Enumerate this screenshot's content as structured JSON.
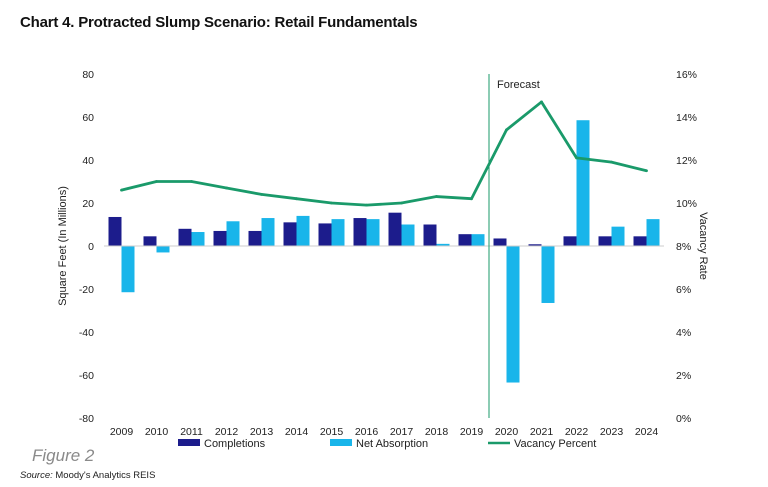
{
  "title": "Chart 4. Protracted Slump Scenario: Retail Fundamentals",
  "figure_label": "Figure 2",
  "source": {
    "label": "Source:",
    "text": " Moody's Analytics REIS"
  },
  "chart_data": {
    "type": "bar",
    "categories": [
      "2009",
      "2010",
      "2011",
      "2012",
      "2013",
      "2014",
      "2015",
      "2016",
      "2017",
      "2018",
      "2019",
      "2020",
      "2021",
      "2022",
      "2023",
      "2024"
    ],
    "series": [
      {
        "name": "Completions",
        "type": "bar",
        "axis": "left",
        "color": "#1c1c8c",
        "values": [
          13.5,
          4.5,
          8,
          7,
          7,
          11,
          10.5,
          13,
          15.5,
          10,
          5.5,
          3.5,
          0.8,
          4.5,
          4.5,
          4.5
        ]
      },
      {
        "name": "Net Absorption",
        "type": "bar",
        "axis": "left",
        "color": "#19b5ea",
        "values": [
          -21.5,
          -3,
          6.5,
          11.5,
          13,
          14,
          12.5,
          12.5,
          10,
          1,
          5.5,
          -63.5,
          -26.5,
          58.5,
          9,
          12.5
        ]
      },
      {
        "name": "Vacancy Percent",
        "type": "line",
        "axis": "right",
        "color": "#1a9a6a",
        "values": [
          10.6,
          11.0,
          11.0,
          10.7,
          10.4,
          10.2,
          10.0,
          9.9,
          10.0,
          10.3,
          10.2,
          13.4,
          14.7,
          12.1,
          11.9,
          11.5
        ]
      }
    ],
    "ylabel": "Square Feet (In Millions)",
    "ylim": [
      -80,
      80
    ],
    "yticks": [
      80,
      60,
      40,
      20,
      0,
      -20,
      -40,
      -60,
      -80
    ],
    "y2label": "Vacancy Rate",
    "y2lim": [
      0,
      16
    ],
    "y2ticks": [
      "16%",
      "14%",
      "12%",
      "10%",
      "8%",
      "6%",
      "4%",
      "2%",
      "0%"
    ],
    "annotations": [
      {
        "text": "Forecast",
        "between": [
          "2019",
          "2020"
        ]
      }
    ],
    "grid": false,
    "legend": "bottom"
  }
}
